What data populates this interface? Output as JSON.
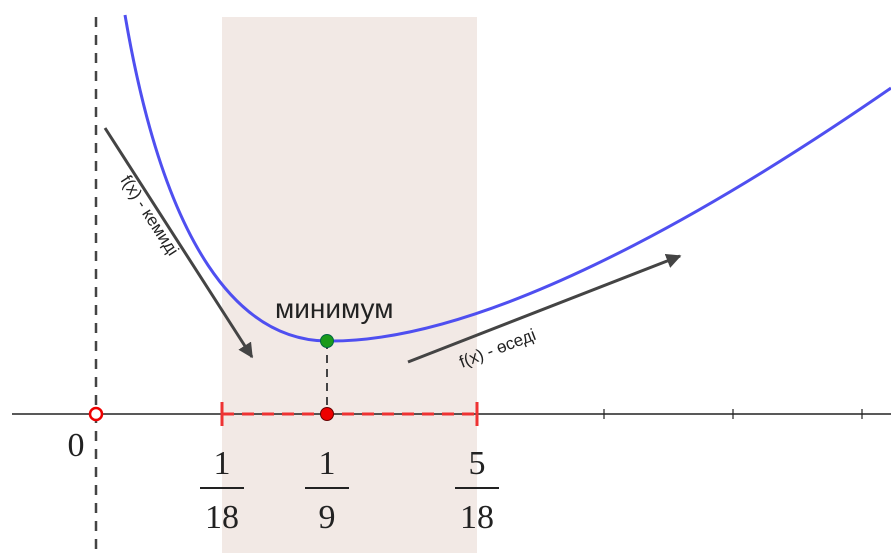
{
  "labels": {
    "minimum": "минимум",
    "decreasing": "f(x) - кемиді",
    "increasing": "f(x) - өседі"
  },
  "axis": {
    "origin": "0",
    "points": [
      {
        "numerator": "1",
        "denominator": "18"
      },
      {
        "numerator": "1",
        "denominator": "9"
      },
      {
        "numerator": "5",
        "denominator": "18"
      }
    ]
  }
}
